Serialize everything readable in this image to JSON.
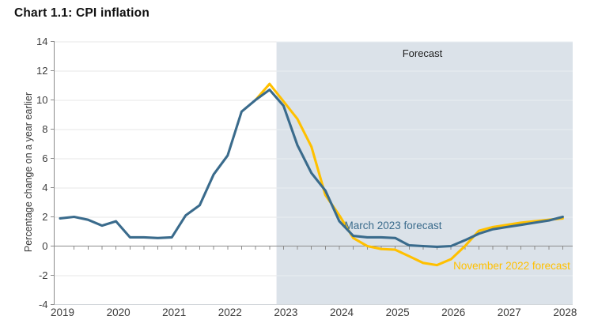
{
  "title": "Chart 1.1: CPI inflation",
  "colors": {
    "march_blue": "#3A6B8C",
    "november_yellow": "#FFC000",
    "forecast_shade": "#DBE2E9",
    "axis": "#8C8C8C",
    "tick_text": "#3C3C3C",
    "forecast_label_text": "#1F1F1F",
    "gridline_white_area": "#E7E7E7",
    "gridline_shaded_area": "#E9EDF1",
    "bottom_line": "#D2D6DA"
  },
  "annotations": {
    "forecast_region_label": "Forecast",
    "march_series_label": "March 2023 forecast",
    "november_series_label": "November 2022 forecast"
  },
  "chart_data": {
    "type": "line",
    "title": "Chart 1.1: CPI inflation",
    "xlabel": "",
    "ylabel": "Percentage change on a year earlier",
    "ylim": [
      -4,
      14
    ],
    "y_ticks": [
      -4,
      -2,
      0,
      2,
      4,
      6,
      8,
      10,
      12,
      14
    ],
    "x_ticks": [
      2019,
      2020,
      2021,
      2022,
      2023,
      2024,
      2025,
      2026,
      2027,
      2028
    ],
    "x_note": "x values are decimal years; quarterly data (Q1=.0, Q2=.25, Q3=.5, Q4=.75)",
    "grid": "horizontal",
    "legend_position": "inline-labels",
    "forecast_region": {
      "start": 2022.875,
      "end": 2028.18,
      "label": "Forecast"
    },
    "series": [
      {
        "name": "November 2022 forecast",
        "color": "#FFC000",
        "x": [
          2022.5,
          2022.75,
          2023.0,
          2023.25,
          2023.5,
          2023.75,
          2024.0,
          2024.25,
          2024.5,
          2024.75,
          2025.0,
          2025.25,
          2025.5,
          2025.75,
          2026.0,
          2026.25,
          2026.5,
          2026.75,
          2027.0,
          2027.25,
          2027.5,
          2027.75,
          2028.0
        ],
        "values": [
          10.0,
          11.1,
          9.9,
          8.7,
          6.8,
          3.5,
          2.1,
          0.55,
          0.0,
          -0.2,
          -0.25,
          -0.7,
          -1.15,
          -1.3,
          -0.9,
          0.0,
          1.05,
          1.3,
          1.45,
          1.6,
          1.7,
          1.8,
          1.9
        ]
      },
      {
        "name": "March 2023 forecast",
        "color": "#3A6B8C",
        "x": [
          2019.0,
          2019.25,
          2019.5,
          2019.75,
          2020.0,
          2020.25,
          2020.5,
          2020.75,
          2021.0,
          2021.25,
          2021.5,
          2021.75,
          2022.0,
          2022.25,
          2022.5,
          2022.75,
          2023.0,
          2023.25,
          2023.5,
          2023.75,
          2024.0,
          2024.25,
          2024.5,
          2024.75,
          2025.0,
          2025.25,
          2025.5,
          2025.75,
          2026.0,
          2026.25,
          2026.5,
          2026.75,
          2027.0,
          2027.25,
          2027.5,
          2027.75,
          2028.0
        ],
        "values": [
          1.9,
          2.0,
          1.8,
          1.4,
          1.7,
          0.6,
          0.6,
          0.55,
          0.6,
          2.1,
          2.8,
          4.9,
          6.2,
          9.2,
          10.0,
          10.7,
          9.6,
          6.9,
          5.0,
          3.8,
          1.7,
          0.7,
          0.6,
          0.6,
          0.55,
          0.05,
          0.0,
          -0.05,
          0.0,
          0.4,
          0.85,
          1.15,
          1.3,
          1.45,
          1.6,
          1.75,
          2.0
        ]
      }
    ]
  }
}
